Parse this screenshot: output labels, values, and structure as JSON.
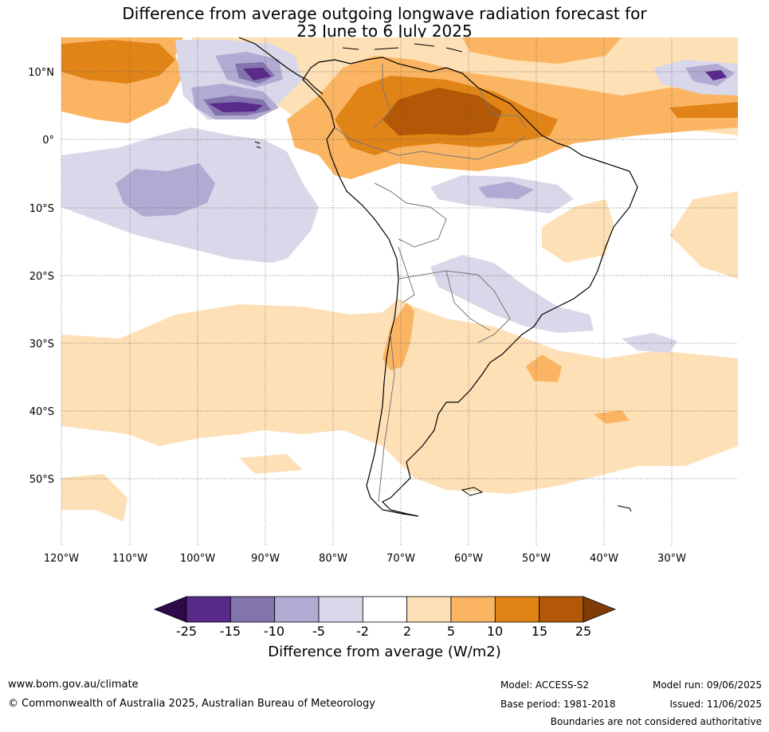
{
  "title": {
    "line1": "Difference from average outgoing longwave radiation forecast for",
    "line2": "23 June to 6 July 2025"
  },
  "map": {
    "lat_labels": [
      "10°N",
      "0°",
      "10°S",
      "20°S",
      "30°S",
      "40°S",
      "50°S"
    ],
    "lon_labels": [
      "120°W",
      "110°W",
      "100°W",
      "90°W",
      "80°W",
      "70°W",
      "60°W",
      "50°W",
      "40°W",
      "30°W"
    ]
  },
  "colorbar": {
    "ticks": [
      "-25",
      "-15",
      "-10",
      "-5",
      "-2",
      "2",
      "5",
      "10",
      "15",
      "25"
    ],
    "colors": [
      "#2d0b4a",
      "#5a2a8a",
      "#8474ae",
      "#b1aad2",
      "#d8d8ea",
      "#ffffff",
      "#fde0b6",
      "#fbb562",
      "#e08418",
      "#b35806",
      "#7f3b08"
    ],
    "title": "Difference from average (W/m2)"
  },
  "footer": {
    "website": "www.bom.gov.au/climate",
    "copyright": "© Commonwealth of Australia 2025, Australian Bureau of Meteorology",
    "model": "Model: ACCESS-S2",
    "base_period": "Base period: 1981-2018",
    "model_run": "Model run: 09/06/2025",
    "issued": "Issued: 11/06/2025",
    "disclaimer": "Boundaries are not considered authoritative"
  }
}
